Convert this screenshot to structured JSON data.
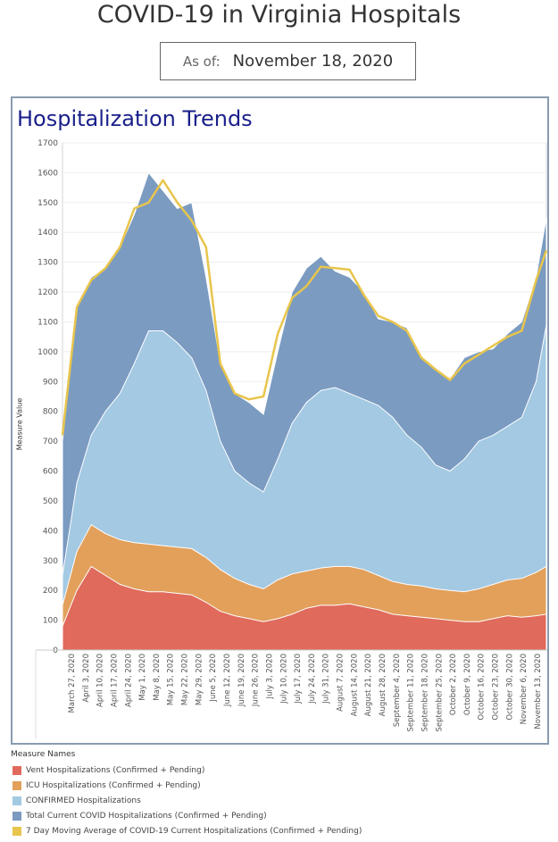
{
  "header": {
    "title": "COVID-19 in Virginia Hospitals",
    "asof_label": "As of:",
    "asof_date": "November 18, 2020"
  },
  "chart_data": {
    "type": "area",
    "title": "Hospitalization Trends",
    "ylabel": "Measure Value",
    "xlabel": "",
    "ylim": [
      0,
      1700
    ],
    "yticks": [
      0,
      100,
      200,
      300,
      400,
      500,
      600,
      700,
      800,
      900,
      1000,
      1100,
      1200,
      1300,
      1400,
      1500,
      1600,
      1700
    ],
    "grid": true,
    "x_start": "2020-03-27",
    "x_end": "2020-11-18",
    "x_tick_labels": [
      "March 27, 2020",
      "April 3, 2020",
      "April 10, 2020",
      "April 17, 2020",
      "April 24, 2020",
      "May 1, 2020",
      "May 8, 2020",
      "May 15, 2020",
      "May 22, 2020",
      "May 29, 2020",
      "June 5, 2020",
      "June 12, 2020",
      "June 19, 2020",
      "June 26, 2020",
      "July 3, 2020",
      "July 10, 2020",
      "July 17, 2020",
      "July 24, 2020",
      "July 31, 2020",
      "August 7, 2020",
      "August 14, 2020",
      "August 21, 2020",
      "August 28, 2020",
      "September 4, 2020",
      "September 11, 2020",
      "September 18, 2020",
      "September 25, 2020",
      "October 2, 2020",
      "October 9, 2020",
      "October 16, 2020",
      "October 23, 2020",
      "October 30, 2020",
      "November 6, 2020",
      "November 13, 2020"
    ],
    "legend_title": "Measure Names",
    "legend_position": "bottom",
    "series": [
      {
        "name": "Vent Hospitalizations (Confirmed + Pending)",
        "color": "#e06a5c",
        "points": [
          [
            "2020-03-27",
            80
          ],
          [
            "2020-04-03",
            200
          ],
          [
            "2020-04-10",
            280
          ],
          [
            "2020-04-17",
            250
          ],
          [
            "2020-04-24",
            220
          ],
          [
            "2020-05-01",
            205
          ],
          [
            "2020-05-08",
            195
          ],
          [
            "2020-05-15",
            195
          ],
          [
            "2020-05-22",
            190
          ],
          [
            "2020-05-29",
            185
          ],
          [
            "2020-06-05",
            160
          ],
          [
            "2020-06-12",
            130
          ],
          [
            "2020-06-19",
            115
          ],
          [
            "2020-06-26",
            105
          ],
          [
            "2020-07-03",
            95
          ],
          [
            "2020-07-10",
            105
          ],
          [
            "2020-07-17",
            120
          ],
          [
            "2020-07-24",
            140
          ],
          [
            "2020-07-31",
            150
          ],
          [
            "2020-08-07",
            150
          ],
          [
            "2020-08-14",
            155
          ],
          [
            "2020-08-21",
            145
          ],
          [
            "2020-08-28",
            135
          ],
          [
            "2020-09-04",
            120
          ],
          [
            "2020-09-11",
            115
          ],
          [
            "2020-09-18",
            110
          ],
          [
            "2020-09-25",
            105
          ],
          [
            "2020-10-02",
            100
          ],
          [
            "2020-10-09",
            95
          ],
          [
            "2020-10-16",
            95
          ],
          [
            "2020-10-23",
            105
          ],
          [
            "2020-10-30",
            115
          ],
          [
            "2020-11-06",
            110
          ],
          [
            "2020-11-13",
            115
          ],
          [
            "2020-11-18",
            120
          ]
        ]
      },
      {
        "name": "ICU Hospitalizations (Confirmed + Pending)",
        "color": "#e2a05b",
        "points": [
          [
            "2020-03-27",
            150
          ],
          [
            "2020-04-03",
            330
          ],
          [
            "2020-04-10",
            420
          ],
          [
            "2020-04-17",
            390
          ],
          [
            "2020-04-24",
            370
          ],
          [
            "2020-05-01",
            360
          ],
          [
            "2020-05-08",
            355
          ],
          [
            "2020-05-15",
            350
          ],
          [
            "2020-05-22",
            345
          ],
          [
            "2020-05-29",
            340
          ],
          [
            "2020-06-05",
            310
          ],
          [
            "2020-06-12",
            270
          ],
          [
            "2020-06-19",
            240
          ],
          [
            "2020-06-26",
            220
          ],
          [
            "2020-07-03",
            205
          ],
          [
            "2020-07-10",
            235
          ],
          [
            "2020-07-17",
            255
          ],
          [
            "2020-07-24",
            265
          ],
          [
            "2020-07-31",
            275
          ],
          [
            "2020-08-07",
            280
          ],
          [
            "2020-08-14",
            280
          ],
          [
            "2020-08-21",
            270
          ],
          [
            "2020-08-28",
            250
          ],
          [
            "2020-09-04",
            230
          ],
          [
            "2020-09-11",
            220
          ],
          [
            "2020-09-18",
            215
          ],
          [
            "2020-09-25",
            205
          ],
          [
            "2020-10-02",
            200
          ],
          [
            "2020-10-09",
            195
          ],
          [
            "2020-10-16",
            205
          ],
          [
            "2020-10-23",
            220
          ],
          [
            "2020-10-30",
            235
          ],
          [
            "2020-11-06",
            240
          ],
          [
            "2020-11-13",
            260
          ],
          [
            "2020-11-18",
            280
          ]
        ]
      },
      {
        "name": "CONFIRMED Hospitalizations",
        "color": "#a3c9e3",
        "points": [
          [
            "2020-03-27",
            250
          ],
          [
            "2020-04-03",
            560
          ],
          [
            "2020-04-10",
            720
          ],
          [
            "2020-04-17",
            800
          ],
          [
            "2020-04-24",
            860
          ],
          [
            "2020-05-01",
            960
          ],
          [
            "2020-05-08",
            1070
          ],
          [
            "2020-05-15",
            1070
          ],
          [
            "2020-05-22",
            1030
          ],
          [
            "2020-05-29",
            980
          ],
          [
            "2020-06-05",
            870
          ],
          [
            "2020-06-12",
            700
          ],
          [
            "2020-06-19",
            600
          ],
          [
            "2020-06-26",
            560
          ],
          [
            "2020-07-03",
            530
          ],
          [
            "2020-07-10",
            640
          ],
          [
            "2020-07-17",
            760
          ],
          [
            "2020-07-24",
            830
          ],
          [
            "2020-07-31",
            870
          ],
          [
            "2020-08-07",
            880
          ],
          [
            "2020-08-14",
            860
          ],
          [
            "2020-08-21",
            840
          ],
          [
            "2020-08-28",
            820
          ],
          [
            "2020-09-04",
            780
          ],
          [
            "2020-09-11",
            720
          ],
          [
            "2020-09-18",
            680
          ],
          [
            "2020-09-25",
            620
          ],
          [
            "2020-10-02",
            600
          ],
          [
            "2020-10-09",
            640
          ],
          [
            "2020-10-16",
            700
          ],
          [
            "2020-10-23",
            720
          ],
          [
            "2020-10-30",
            750
          ],
          [
            "2020-11-06",
            780
          ],
          [
            "2020-11-13",
            900
          ],
          [
            "2020-11-18",
            1090
          ]
        ]
      },
      {
        "name": "Total Current COVID Hospitalizations (Confirmed + Pending)",
        "color": "#7b9bc1",
        "points": [
          [
            "2020-03-27",
            700
          ],
          [
            "2020-04-03",
            1150
          ],
          [
            "2020-04-10",
            1250
          ],
          [
            "2020-04-17",
            1280
          ],
          [
            "2020-04-24",
            1350
          ],
          [
            "2020-05-01",
            1460
          ],
          [
            "2020-05-08",
            1600
          ],
          [
            "2020-05-15",
            1540
          ],
          [
            "2020-05-22",
            1480
          ],
          [
            "2020-05-29",
            1500
          ],
          [
            "2020-06-05",
            1250
          ],
          [
            "2020-06-12",
            960
          ],
          [
            "2020-06-19",
            860
          ],
          [
            "2020-06-26",
            830
          ],
          [
            "2020-07-03",
            790
          ],
          [
            "2020-07-10",
            1000
          ],
          [
            "2020-07-17",
            1200
          ],
          [
            "2020-07-24",
            1280
          ],
          [
            "2020-07-31",
            1320
          ],
          [
            "2020-08-07",
            1270
          ],
          [
            "2020-08-14",
            1250
          ],
          [
            "2020-08-21",
            1200
          ],
          [
            "2020-08-28",
            1110
          ],
          [
            "2020-09-04",
            1100
          ],
          [
            "2020-09-11",
            1080
          ],
          [
            "2020-09-18",
            980
          ],
          [
            "2020-09-25",
            940
          ],
          [
            "2020-10-02",
            910
          ],
          [
            "2020-10-09",
            980
          ],
          [
            "2020-10-16",
            1000
          ],
          [
            "2020-10-23",
            1010
          ],
          [
            "2020-10-30",
            1060
          ],
          [
            "2020-11-06",
            1100
          ],
          [
            "2020-11-13",
            1250
          ],
          [
            "2020-11-18",
            1450
          ]
        ]
      },
      {
        "name": "7 Day Moving Average of COVID-19 Current Hospitalizations (Confirmed + Pending)",
        "color": "#e8c54c",
        "points": [
          [
            "2020-03-27",
            720
          ],
          [
            "2020-04-03",
            1150
          ],
          [
            "2020-04-10",
            1240
          ],
          [
            "2020-04-17",
            1280
          ],
          [
            "2020-04-24",
            1350
          ],
          [
            "2020-05-01",
            1480
          ],
          [
            "2020-05-08",
            1500
          ],
          [
            "2020-05-15",
            1575
          ],
          [
            "2020-05-22",
            1500
          ],
          [
            "2020-05-29",
            1440
          ],
          [
            "2020-06-05",
            1350
          ],
          [
            "2020-06-12",
            960
          ],
          [
            "2020-06-19",
            860
          ],
          [
            "2020-06-26",
            840
          ],
          [
            "2020-07-03",
            850
          ],
          [
            "2020-07-10",
            1060
          ],
          [
            "2020-07-17",
            1180
          ],
          [
            "2020-07-24",
            1220
          ],
          [
            "2020-07-31",
            1285
          ],
          [
            "2020-08-07",
            1280
          ],
          [
            "2020-08-14",
            1275
          ],
          [
            "2020-08-21",
            1190
          ],
          [
            "2020-08-28",
            1120
          ],
          [
            "2020-09-04",
            1100
          ],
          [
            "2020-09-11",
            1070
          ],
          [
            "2020-09-18",
            980
          ],
          [
            "2020-09-25",
            940
          ],
          [
            "2020-10-02",
            905
          ],
          [
            "2020-10-09",
            960
          ],
          [
            "2020-10-16",
            990
          ],
          [
            "2020-10-23",
            1020
          ],
          [
            "2020-10-30",
            1050
          ],
          [
            "2020-11-06",
            1070
          ],
          [
            "2020-11-13",
            1240
          ],
          [
            "2020-11-18",
            1340
          ]
        ]
      }
    ]
  }
}
